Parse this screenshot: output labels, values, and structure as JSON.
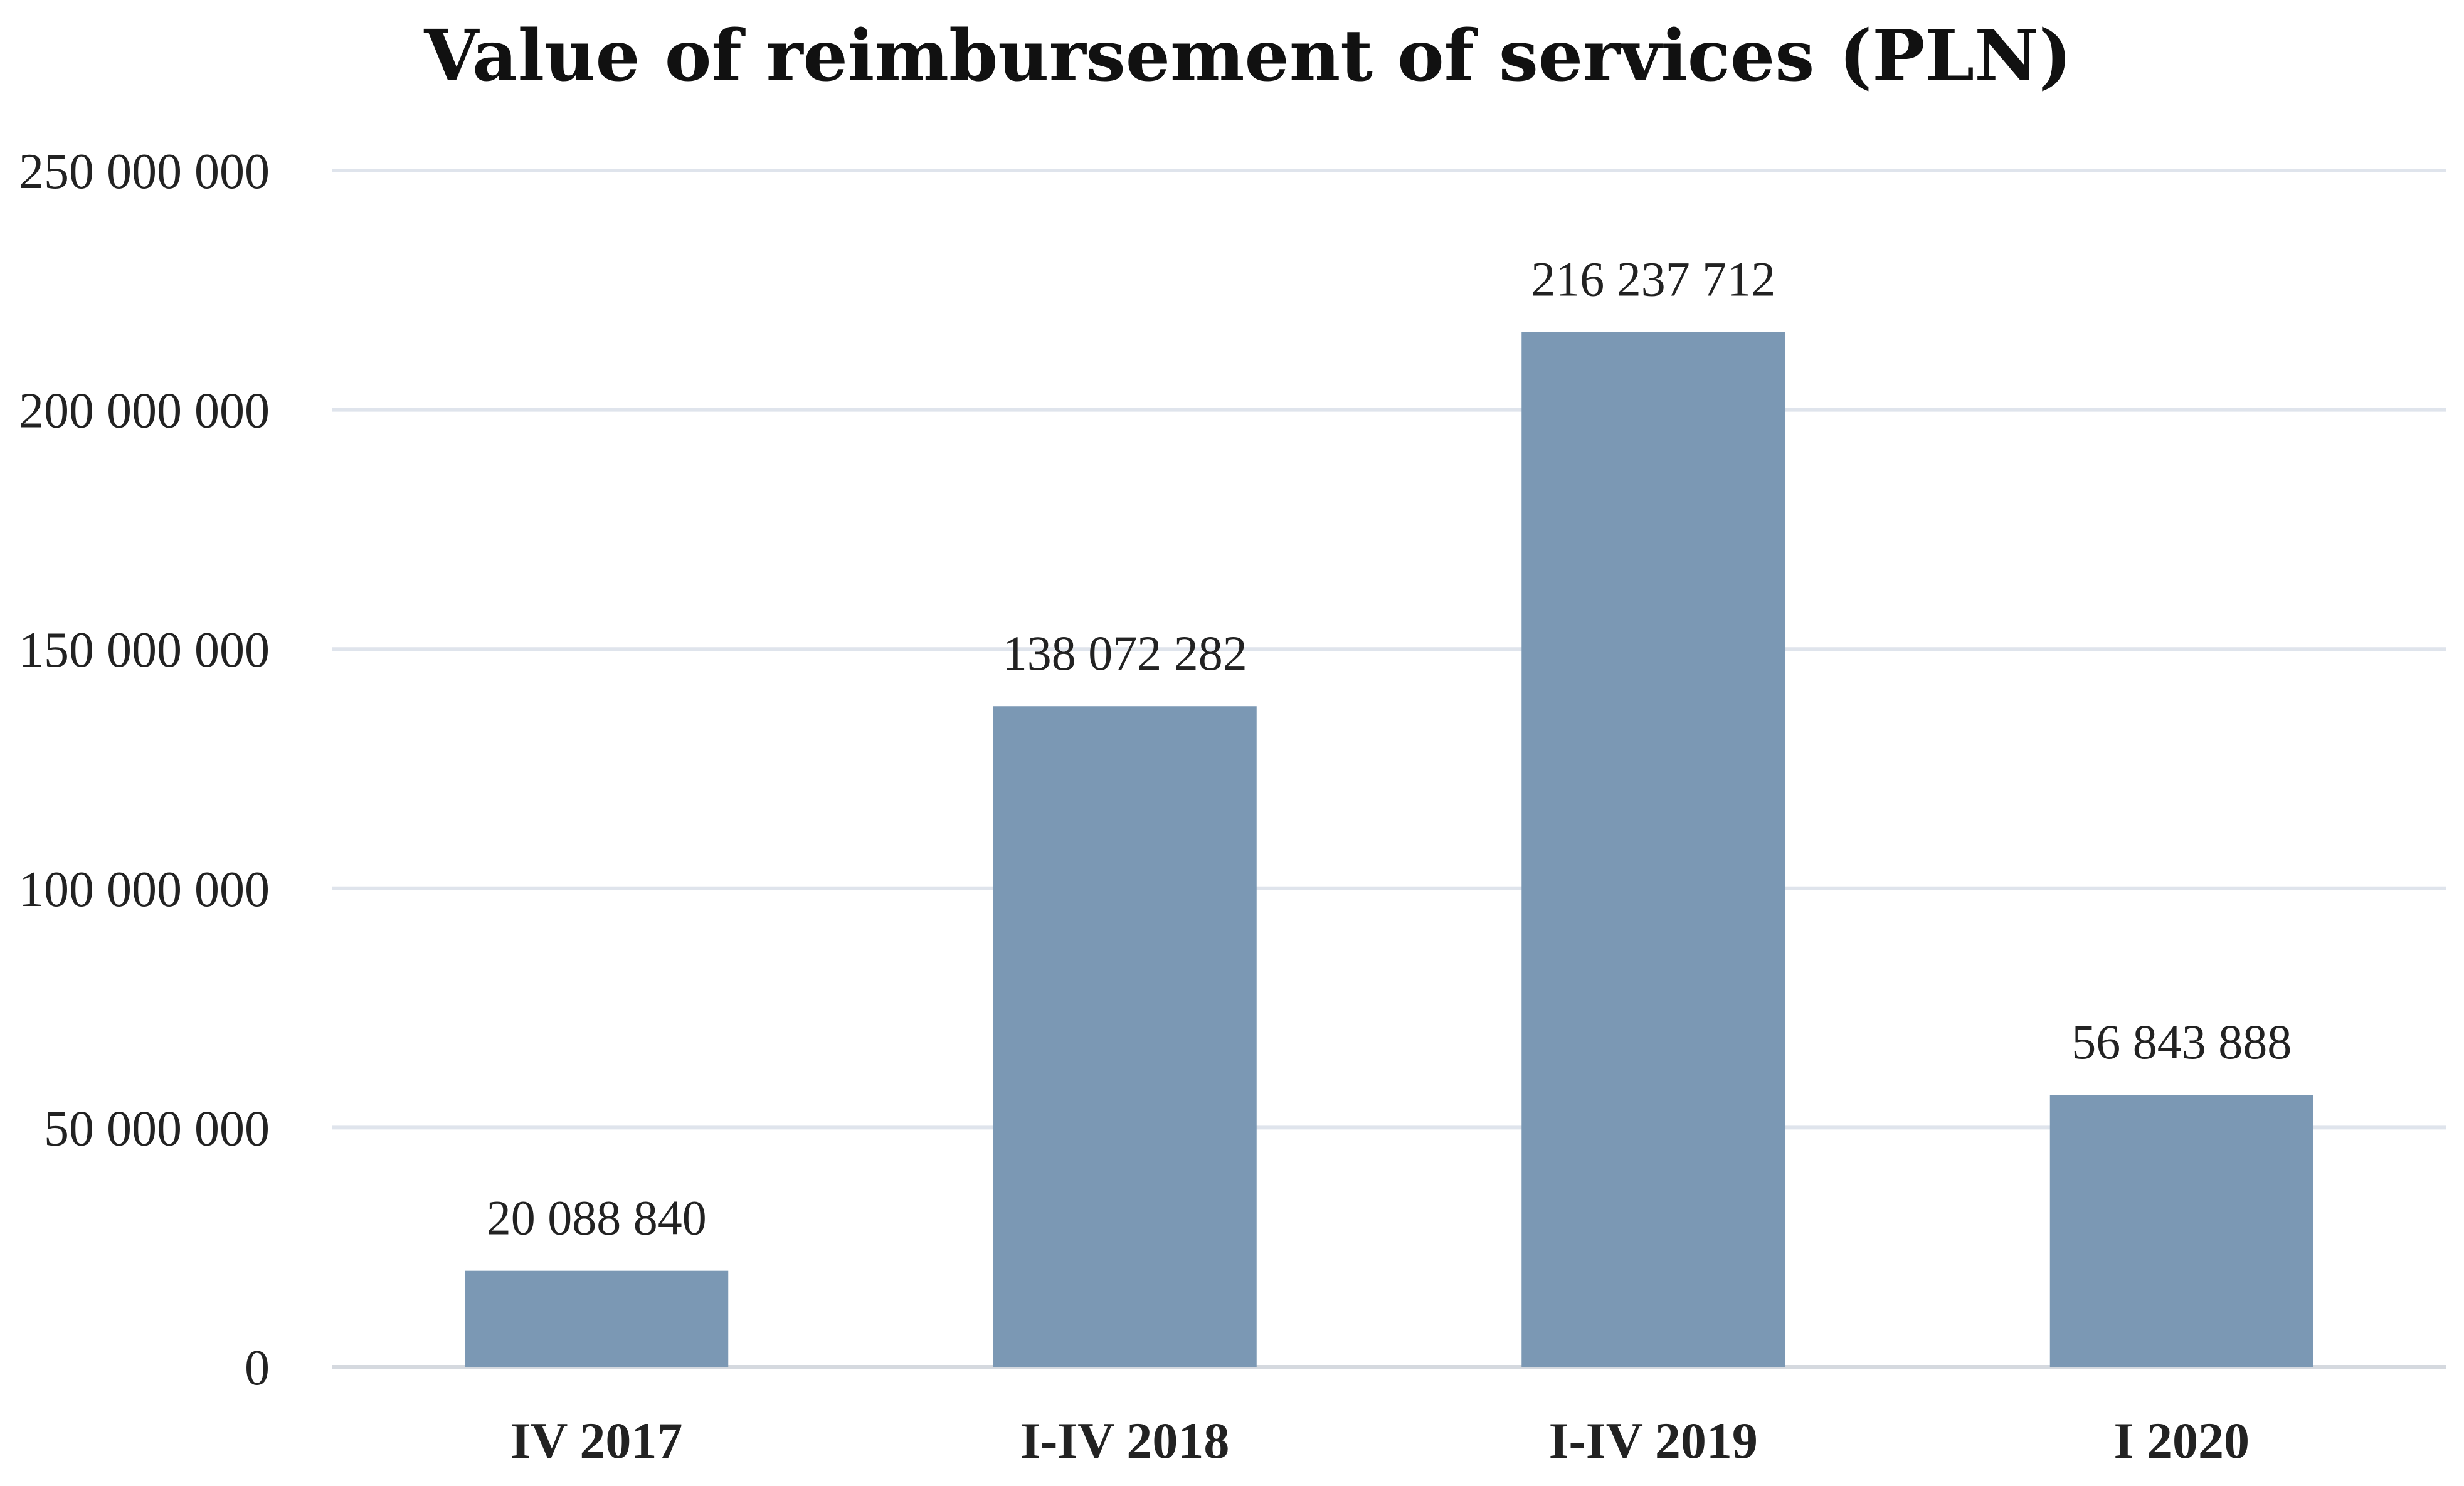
{
  "chart_data": {
    "type": "bar",
    "title": "Value of reimbursement of services (PLN)",
    "xlabel": "",
    "ylabel": "",
    "categories": [
      "IV 2017",
      "I-IV 2018",
      "I-IV 2019",
      "I 2020"
    ],
    "values": [
      20088840,
      138072282,
      216237712,
      56843888
    ],
    "data_labels": [
      "20 088 840",
      "138 072 282",
      "216 237 712",
      "56 843 888"
    ],
    "ylim": [
      0,
      250000000
    ],
    "yticks": [
      0,
      50000000,
      100000000,
      150000000,
      200000000,
      250000000
    ],
    "ytick_labels": [
      "0",
      "50 000 000",
      "100 000 000",
      "150 000 000",
      "200 000 000",
      "250 000 000"
    ],
    "grid": true,
    "bar_color": "#7b98b4"
  }
}
